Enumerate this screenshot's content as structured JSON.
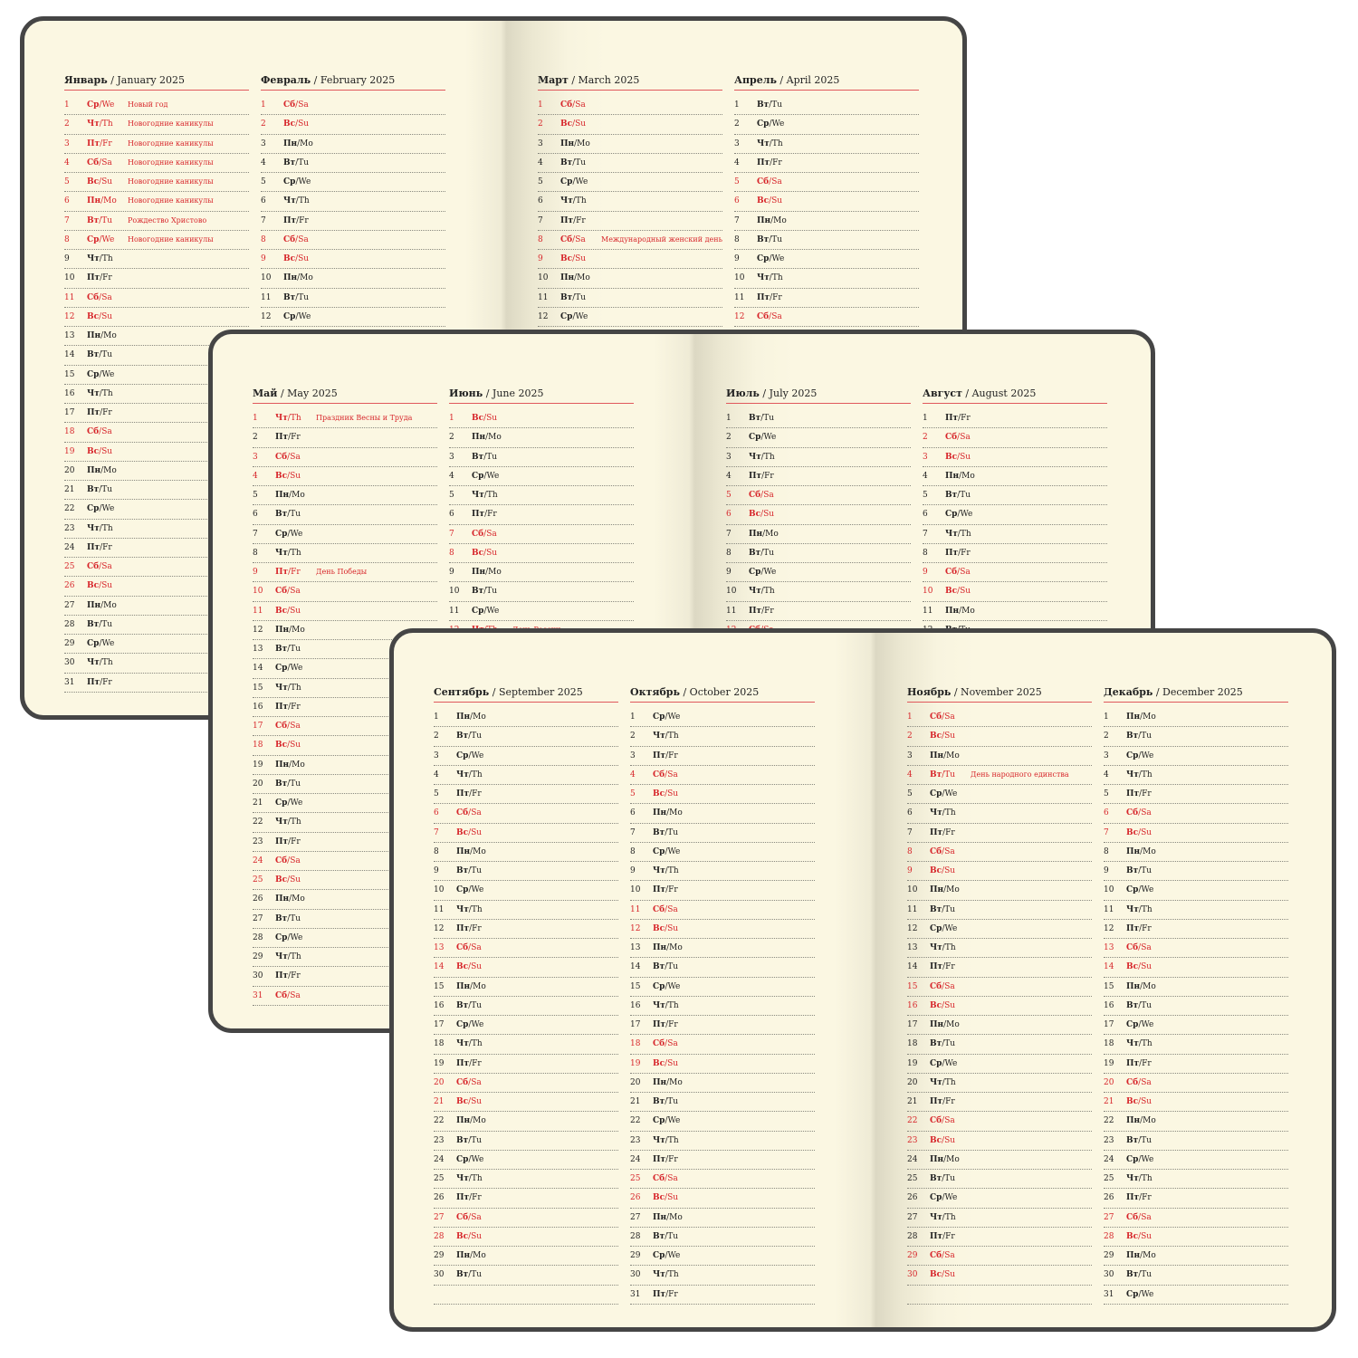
{
  "weekdays": [
    {
      "ru": "Пн",
      "en": "Mo"
    },
    {
      "ru": "Вт",
      "en": "Tu"
    },
    {
      "ru": "Ср",
      "en": "We"
    },
    {
      "ru": "Чт",
      "en": "Th"
    },
    {
      "ru": "Пт",
      "en": "Fr"
    },
    {
      "ru": "Сб",
      "en": "Sa"
    },
    {
      "ru": "Вс",
      "en": "Su"
    }
  ],
  "colors": {
    "accent_red": "#d7262b",
    "text": "#222222",
    "paper": "#fbf7e2",
    "cover_border": "#454545"
  },
  "spreads": [
    {
      "months": [
        {
          "ru": "Январь",
          "en": "/ January 2025",
          "first_weekday": 2,
          "visible_days": 31,
          "lines": 31,
          "holidays": [
            {
              "day": 1,
              "note": "Новый год"
            },
            {
              "day": 2,
              "note": "Новогодние каникулы"
            },
            {
              "day": 3,
              "note": "Новогодние каникулы"
            },
            {
              "day": 4,
              "note": "Новогодние каникулы"
            },
            {
              "day": 5,
              "note": "Новогодние каникулы"
            },
            {
              "day": 6,
              "note": "Новогодние каникулы"
            },
            {
              "day": 7,
              "note": "Рождество Христово"
            },
            {
              "day": 8,
              "note": "Новогодние каникулы"
            }
          ]
        },
        {
          "ru": "Февраль",
          "en": "/ February 2025",
          "first_weekday": 5,
          "visible_days": 13,
          "lines": 13,
          "holidays": []
        },
        {
          "ru": "Март",
          "en": "/ March 2025",
          "first_weekday": 5,
          "visible_days": 13,
          "lines": 13,
          "holidays": [
            {
              "day": 8,
              "note": "Международный женский день"
            }
          ]
        },
        {
          "ru": "Апрель",
          "en": "/ April 2025",
          "first_weekday": 1,
          "visible_days": 13,
          "lines": 13,
          "holidays": []
        }
      ]
    },
    {
      "months": [
        {
          "ru": "Май",
          "en": "/ May 2025",
          "first_weekday": 3,
          "visible_days": 31,
          "lines": 31,
          "holidays": [
            {
              "day": 1,
              "note": "Праздник Весны и Труда"
            },
            {
              "day": 9,
              "note": "День Победы"
            }
          ]
        },
        {
          "ru": "Июнь",
          "en": "/ June 2025",
          "first_weekday": 6,
          "visible_days": 12,
          "lines": 12,
          "holidays": [
            {
              "day": 12,
              "note": "День России"
            }
          ]
        },
        {
          "ru": "Июль",
          "en": "/ July 2025",
          "first_weekday": 1,
          "visible_days": 12,
          "lines": 12,
          "holidays": []
        },
        {
          "ru": "Август",
          "en": "/ August 2025",
          "first_weekday": 4,
          "visible_days": 12,
          "lines": 12,
          "holidays": []
        }
      ]
    },
    {
      "months": [
        {
          "ru": "Сентябрь",
          "en": "/ September 2025",
          "first_weekday": 0,
          "visible_days": 30,
          "lines": 31,
          "holidays": []
        },
        {
          "ru": "Октябрь",
          "en": "/ October 2025",
          "first_weekday": 2,
          "visible_days": 31,
          "lines": 31,
          "holidays": []
        },
        {
          "ru": "Ноябрь",
          "en": "/ November 2025",
          "first_weekday": 5,
          "visible_days": 30,
          "lines": 31,
          "holidays": [
            {
              "day": 4,
              "note": "День народного единства"
            }
          ]
        },
        {
          "ru": "Декабрь",
          "en": "/ December 2025",
          "first_weekday": 0,
          "visible_days": 31,
          "lines": 31,
          "holidays": []
        }
      ]
    }
  ]
}
